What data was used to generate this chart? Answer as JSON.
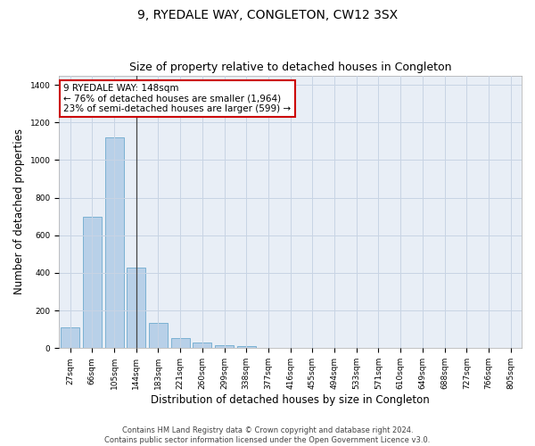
{
  "title": "9, RYEDALE WAY, CONGLETON, CW12 3SX",
  "subtitle": "Size of property relative to detached houses in Congleton",
  "xlabel": "Distribution of detached houses by size in Congleton",
  "ylabel": "Number of detached properties",
  "categories": [
    "27sqm",
    "66sqm",
    "105sqm",
    "144sqm",
    "183sqm",
    "221sqm",
    "260sqm",
    "299sqm",
    "338sqm",
    "377sqm",
    "416sqm",
    "455sqm",
    "494sqm",
    "533sqm",
    "571sqm",
    "610sqm",
    "649sqm",
    "688sqm",
    "727sqm",
    "766sqm",
    "805sqm"
  ],
  "values": [
    110,
    700,
    1120,
    430,
    135,
    52,
    32,
    18,
    13,
    0,
    0,
    0,
    0,
    0,
    0,
    0,
    0,
    0,
    0,
    0,
    0
  ],
  "bar_color": "#b8d0e8",
  "bar_edge_color": "#5a9fc8",
  "vline_bar_index": 3,
  "vline_color": "#444444",
  "annotation_box_text_line1": "9 RYEDALE WAY: 148sqm",
  "annotation_box_text_line2": "← 76% of detached houses are smaller (1,964)",
  "annotation_box_text_line3": "23% of semi-detached houses are larger (599) →",
  "annotation_box_color": "#cc0000",
  "ylim": [
    0,
    1450
  ],
  "yticks": [
    0,
    200,
    400,
    600,
    800,
    1000,
    1200,
    1400
  ],
  "grid_color": "#c8d4e4",
  "background_color": "#e8eef6",
  "footer_line1": "Contains HM Land Registry data © Crown copyright and database right 2024.",
  "footer_line2": "Contains public sector information licensed under the Open Government Licence v3.0.",
  "title_fontsize": 10,
  "subtitle_fontsize": 9,
  "xlabel_fontsize": 8.5,
  "ylabel_fontsize": 8.5,
  "annotation_fontsize": 7.5,
  "tick_fontsize": 6.5,
  "footer_fontsize": 6
}
